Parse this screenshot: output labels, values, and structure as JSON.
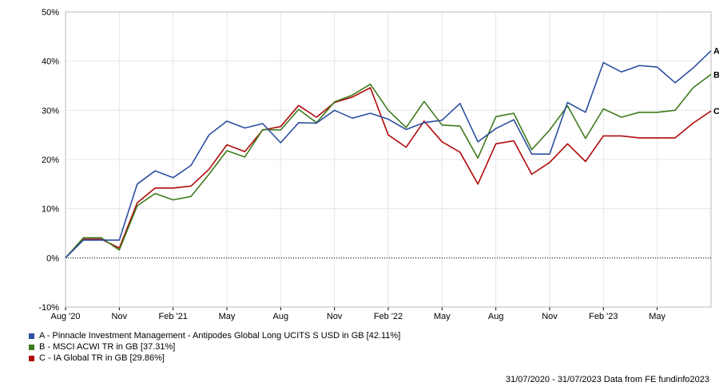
{
  "chart_data": {
    "type": "line",
    "ylim": [
      -10,
      50
    ],
    "y_ticks": [
      -10,
      0,
      10,
      20,
      30,
      40,
      50
    ],
    "y_tick_labels": [
      "-10%",
      "0%",
      "10%",
      "20%",
      "30%",
      "40%",
      "50%"
    ],
    "x_tick_labels": [
      {
        "index": 0,
        "label": "Aug '20"
      },
      {
        "index": 3,
        "label": "Nov"
      },
      {
        "index": 6,
        "label": "Feb '21"
      },
      {
        "index": 9,
        "label": "May"
      },
      {
        "index": 12,
        "label": "Aug"
      },
      {
        "index": 15,
        "label": "Nov"
      },
      {
        "index": 18,
        "label": "Feb '22"
      },
      {
        "index": 21,
        "label": "May"
      },
      {
        "index": 24,
        "label": "Aug"
      },
      {
        "index": 27,
        "label": "Nov"
      },
      {
        "index": 30,
        "label": "Feb '23"
      },
      {
        "index": 33,
        "label": "May"
      }
    ],
    "x_points": 37,
    "grid": true,
    "zero_line": "dotted",
    "legend_position": "bottom-left",
    "series": [
      {
        "name": "A - Pinnacle Investment Management - Antipodes Global Long UCITS S USD in GB [42.11%]",
        "end_label": "A",
        "color": "#2d4fa0",
        "values": [
          0,
          3.6,
          3.6,
          3.6,
          15,
          17.7,
          16.3,
          18.8,
          25,
          27.8,
          26.4,
          27.3,
          23.4,
          27.5,
          27.4,
          30,
          28.4,
          29.4,
          28.2,
          26.1,
          27.5,
          28,
          31.4,
          23.6,
          26.3,
          28.1,
          21.1,
          21.1,
          31.6,
          29.6,
          39.7,
          37.8,
          39.1,
          38.8,
          35.6,
          38.6,
          42.11
        ]
      },
      {
        "name": "B - MSCI ACWI TR in GB [37.31%]",
        "end_label": "B",
        "color": "#3e7a1c",
        "values": [
          0,
          4.1,
          4.1,
          1.6,
          10.6,
          13.1,
          11.8,
          12.5,
          17,
          21.8,
          20.5,
          26.1,
          26,
          30.2,
          27.5,
          31.7,
          33.1,
          35.3,
          30,
          26.5,
          31.8,
          27,
          26.8,
          20.3,
          28.7,
          29.4,
          22,
          26,
          30.9,
          24.3,
          30.3,
          28.6,
          29.6,
          29.6,
          30,
          34.6,
          37.31
        ]
      },
      {
        "name": "C - IA Global TR in GB [29.86%]",
        "end_label": "C",
        "color": "#b00a0a",
        "values": [
          0,
          3.8,
          3.8,
          2,
          11.2,
          14.2,
          14.2,
          14.6,
          18,
          23,
          21.6,
          26,
          26.7,
          31,
          28.6,
          31.6,
          32.7,
          34.6,
          25,
          22.5,
          27.8,
          23.6,
          21.5,
          15,
          23.2,
          23.8,
          17,
          19.4,
          23.2,
          19.6,
          24.8,
          24.8,
          24.4,
          24.4,
          24.4,
          27.4,
          29.86
        ]
      }
    ]
  },
  "footer": {
    "date_range": "31/07/2020 - 31/07/2023 Data from FE fundinfo2023"
  }
}
